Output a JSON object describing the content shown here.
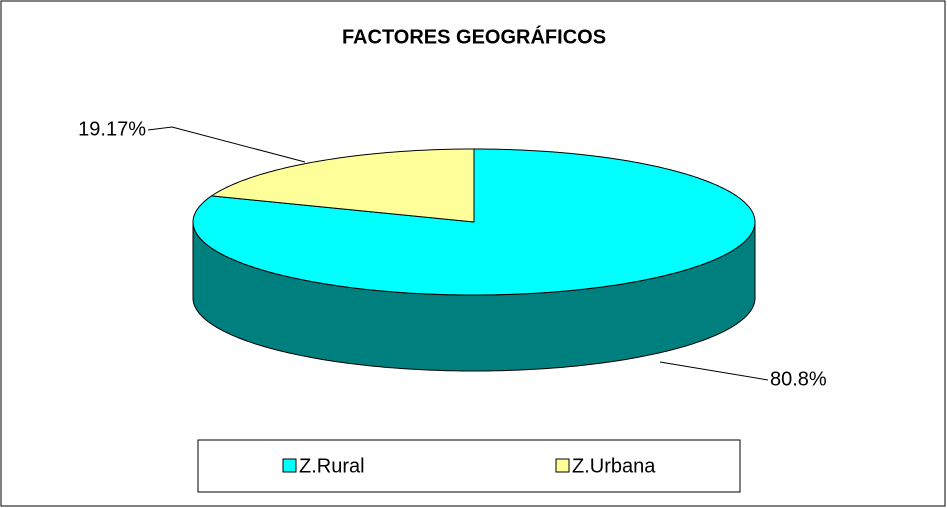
{
  "chart_data": {
    "type": "pie3d",
    "title": "FACTORES GEOGRÁFICOS",
    "categories": [
      "Z.Rural",
      "Z.Urbana"
    ],
    "values": [
      80.8,
      19.17
    ],
    "value_labels": [
      "80.8%",
      "19.17%"
    ],
    "colors": [
      "#00FFFF",
      "#FFFF99"
    ],
    "legend": "bottom"
  }
}
